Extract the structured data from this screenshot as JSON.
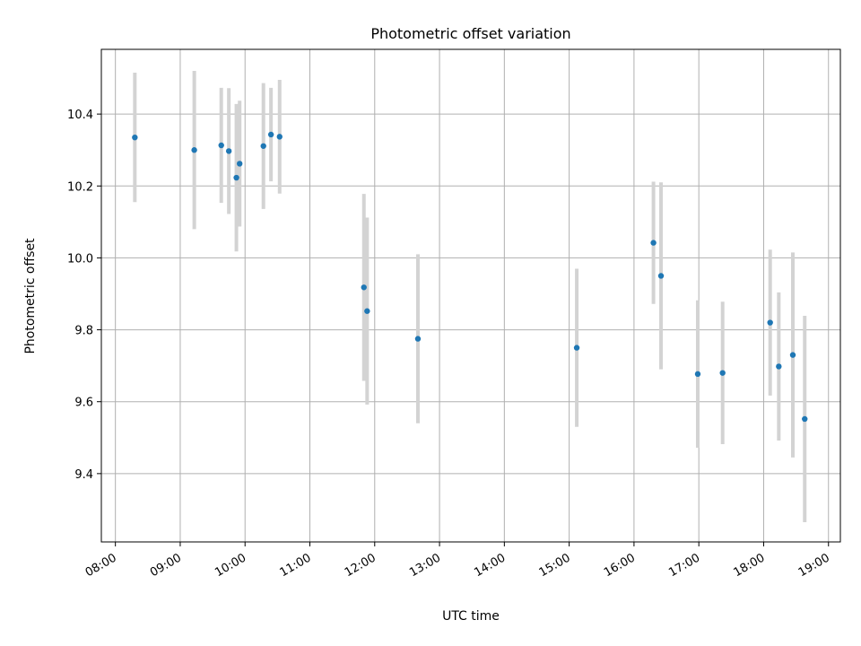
{
  "chart_data": {
    "type": "scatter",
    "title": "Photometric offset variation",
    "xlabel": "UTC time",
    "ylabel": "Photometric offset",
    "x_ticks": [
      "08:00",
      "09:00",
      "10:00",
      "11:00",
      "12:00",
      "13:00",
      "14:00",
      "15:00",
      "16:00",
      "17:00",
      "18:00",
      "19:00"
    ],
    "y_ticks": [
      "9.4",
      "9.6",
      "9.8",
      "10.0",
      "10.2",
      "10.4"
    ],
    "xlim": [
      "07:47",
      "19:11"
    ],
    "ylim": [
      9.21,
      10.58
    ],
    "grid": true,
    "colors": {
      "point": "#1f77b4",
      "errorbar": "#d3d3d3",
      "grid": "#b0b0b0"
    },
    "points": [
      {
        "x": "08:18",
        "y": 10.335,
        "err": 0.18
      },
      {
        "x": "09:13",
        "y": 10.3,
        "err": 0.22
      },
      {
        "x": "09:38",
        "y": 10.313,
        "err": 0.16
      },
      {
        "x": "09:45",
        "y": 10.297,
        "err": 0.175
      },
      {
        "x": "09:52",
        "y": 10.223,
        "err": 0.205
      },
      {
        "x": "09:55",
        "y": 10.262,
        "err": 0.175
      },
      {
        "x": "10:17",
        "y": 10.311,
        "err": 0.175
      },
      {
        "x": "10:24",
        "y": 10.343,
        "err": 0.13
      },
      {
        "x": "10:32",
        "y": 10.337,
        "err": 0.158
      },
      {
        "x": "11:50",
        "y": 9.918,
        "err": 0.26
      },
      {
        "x": "11:53",
        "y": 9.852,
        "err": 0.26
      },
      {
        "x": "12:40",
        "y": 9.775,
        "err": 0.235
      },
      {
        "x": "15:07",
        "y": 9.75,
        "err": 0.22
      },
      {
        "x": "16:18",
        "y": 10.042,
        "err": 0.17
      },
      {
        "x": "16:25",
        "y": 9.95,
        "err": 0.26
      },
      {
        "x": "16:59",
        "y": 9.677,
        "err": 0.205
      },
      {
        "x": "17:22",
        "y": 9.68,
        "err": 0.198
      },
      {
        "x": "18:06",
        "y": 9.82,
        "err": 0.203
      },
      {
        "x": "18:14",
        "y": 9.698,
        "err": 0.206
      },
      {
        "x": "18:27",
        "y": 9.73,
        "err": 0.285
      },
      {
        "x": "18:38",
        "y": 9.552,
        "err": 0.287
      }
    ]
  }
}
